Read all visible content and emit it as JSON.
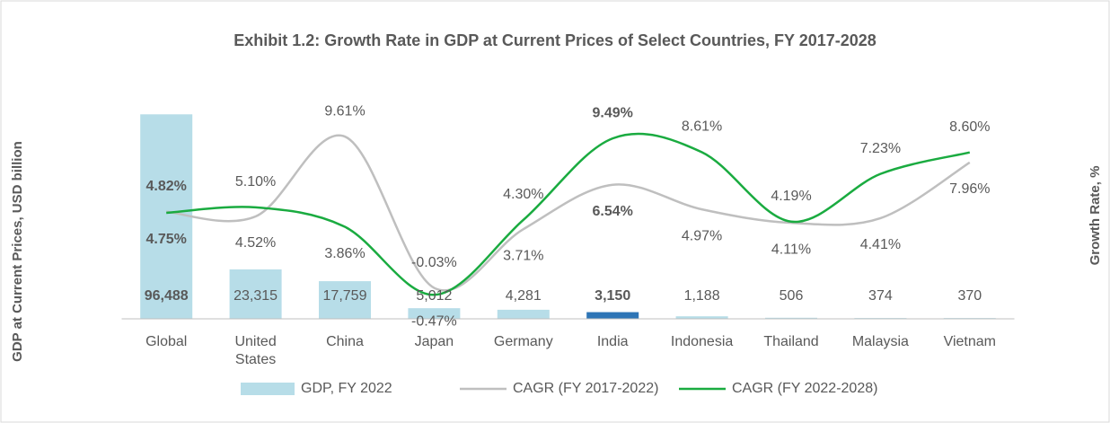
{
  "chart_data": {
    "type": "bar_line",
    "title": "Exhibit 1.2: Growth Rate in GDP at Current Prices of Select Countries, FY 2017-2028",
    "y_label": "GDP at Current Prices, USD billion",
    "y2_label": "Growth Rate, %",
    "categories": [
      "Global",
      "United States",
      "China",
      "Japan",
      "Germany",
      "India",
      "Indonesia",
      "Thailand",
      "Malaysia",
      "Vietnam"
    ],
    "label_bold": [
      true,
      false,
      false,
      false,
      false,
      true,
      false,
      false,
      false,
      false
    ],
    "ylim": [
      0,
      100000
    ],
    "y2lim": [
      -2,
      11.5
    ],
    "series": [
      {
        "name": "GDP, FY 2022",
        "type": "bar",
        "color": "#b7dde8",
        "colors": [
          "#b7dde8",
          "#b7dde8",
          "#b7dde8",
          "#b7dde8",
          "#b7dde8",
          "#2e75b6",
          "#b7dde8",
          "#b7dde8",
          "#b7dde8",
          "#b7dde8"
        ],
        "values": [
          96488,
          23315,
          17759,
          5012,
          4281,
          3150,
          1188,
          506,
          374,
          370
        ],
        "value_labels": [
          "96,488",
          "23,315",
          "17,759",
          "5,012",
          "4,281",
          "3,150",
          "1,188",
          "506",
          "374",
          "370"
        ]
      },
      {
        "name": "CAGR (FY 2017-2022)",
        "type": "line",
        "axis": "y2",
        "color": "#bfbfbf",
        "values": [
          4.82,
          4.52,
          9.61,
          -0.03,
          3.71,
          6.54,
          4.97,
          4.11,
          4.41,
          7.96
        ],
        "value_labels": [
          "4.82%",
          "4.52%",
          "9.61%",
          "-0.03%",
          "3.71%",
          "6.54%",
          "4.97%",
          "4.11%",
          "4.41%",
          "7.96%"
        ]
      },
      {
        "name": "CAGR (FY 2022-2028)",
        "type": "line",
        "axis": "y2",
        "color": "#1aab40",
        "values": [
          4.75,
          5.1,
          3.86,
          -0.47,
          4.3,
          9.49,
          8.61,
          4.19,
          7.23,
          8.6
        ],
        "value_labels": [
          "4.75%",
          "5.10%",
          "3.86%",
          "-0.47%",
          "4.30%",
          "9.49%",
          "8.61%",
          "4.19%",
          "7.23%",
          "8.60%"
        ]
      }
    ]
  }
}
